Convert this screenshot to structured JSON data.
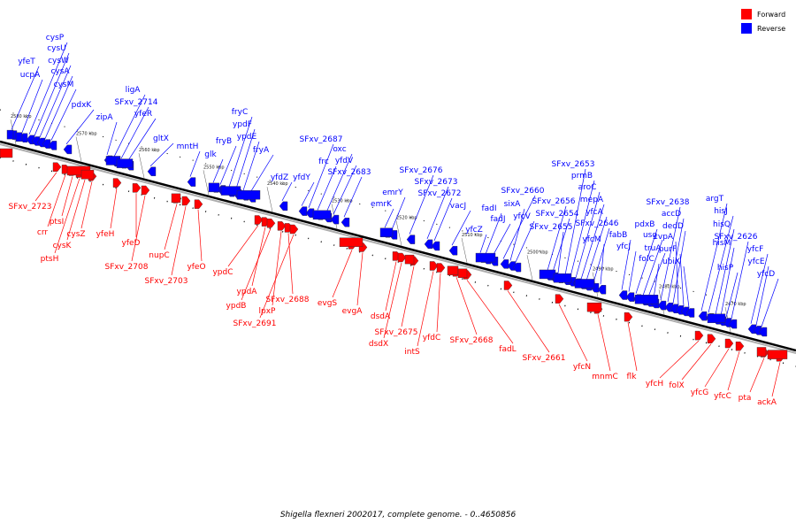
{
  "legend": {
    "forward_label": "Forward",
    "reverse_label": "Reverse",
    "forward_color": "#ff0000",
    "reverse_color": "#0000ff"
  },
  "caption": {
    "organism": "Shigella flexneri 2002017, complete genome.",
    "range": "- 0..4650856"
  },
  "ticks": [
    "2580 kbp",
    "2570 kbp",
    "2560 kbp",
    "2550 kbp",
    "2540 kbp",
    "2530 kbp",
    "2520 kbp",
    "2510 kbp",
    "2500 kbp",
    "2490 kbp",
    "2480 kbp",
    "2470 kbp"
  ],
  "reverse_genes": [
    "yfeT",
    "ucpA",
    "cysP",
    "cysU",
    "cysW",
    "cysA",
    "cysM",
    "pdxK",
    "zipA",
    "ligA",
    "SFxv_2714",
    "yfeR",
    "gltX",
    "mntH",
    "glk",
    "fryB",
    "fryC",
    "ypdF",
    "ypdE",
    "fryA",
    "yfdZ",
    "yfdY",
    "SFxv_2687",
    "frc",
    "oxc",
    "yfdV",
    "SFxv_2683",
    "emrK",
    "emrY",
    "SFxv_2676",
    "SFxv_2673",
    "SFxv_2672",
    "vacJ",
    "yfcZ",
    "fadI",
    "fadJ",
    "SFxv_2660",
    "sixA",
    "yfcV",
    "SFxv_2656",
    "SFxv_2654",
    "SFxv_2655",
    "SFxv_2653",
    "prmB",
    "aroC",
    "mepA",
    "yfcA",
    "SFxv_2646",
    "yfcM",
    "fabB",
    "yfcJ",
    "pdxB",
    "usg",
    "truA",
    "folC",
    "SFxv_2638",
    "accD",
    "dedD",
    "cvpA",
    "purF",
    "ubiX",
    "argT",
    "hisJ",
    "hisQ",
    "hisM",
    "hisP",
    "SFxv_2626",
    "yfcF",
    "yfcE",
    "yfcD"
  ],
  "forward_genes": [
    "SFxv_2723",
    "crr",
    "ptsI",
    "ptsH",
    "cysK",
    "cysZ",
    "yfeH",
    "yfeD",
    "SFxv_2708",
    "nupC",
    "SFxv_2703",
    "yfeO",
    "ypdC",
    "ypdA",
    "ypdB",
    "lpxP",
    "SFxv_2688",
    "SFxv_2691",
    "evgS",
    "evgA",
    "dsdA",
    "dsdX",
    "SFxv_2675",
    "intS",
    "yfdC",
    "SFxv_2668",
    "fadL",
    "SFxv_2661",
    "yfcN",
    "mnmC",
    "flk",
    "yfcH",
    "folX",
    "yfcG",
    "yfcC",
    "pta",
    "ackA"
  ]
}
